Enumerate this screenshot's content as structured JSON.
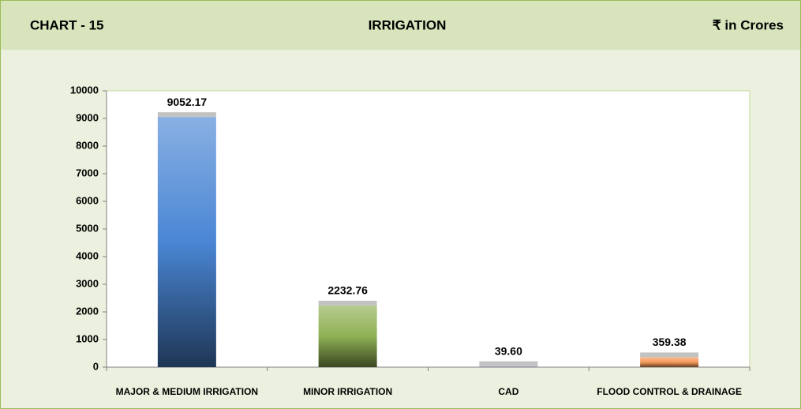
{
  "chart_data": {
    "type": "bar",
    "header": {
      "left": "CHART - 15",
      "title": "IRRIGATION",
      "unit": "₹ in Crores"
    },
    "categories": [
      "MAJOR & MEDIUM IRRIGATION",
      "MINOR IRRIGATION",
      "CAD",
      "FLOOD CONTROL & DRAINAGE"
    ],
    "values": [
      9052.17,
      2232.76,
      39.6,
      359.38
    ],
    "value_labels": [
      "9052.17",
      "2232.76",
      "39.60",
      "359.38"
    ],
    "colors": [
      "#4a86d4",
      "#8fb054",
      "#b8b8e0",
      "#f59a5a"
    ],
    "ylim": [
      0,
      10000
    ],
    "yticks": [
      0,
      1000,
      2000,
      3000,
      4000,
      5000,
      6000,
      7000,
      8000,
      9000,
      10000
    ]
  }
}
